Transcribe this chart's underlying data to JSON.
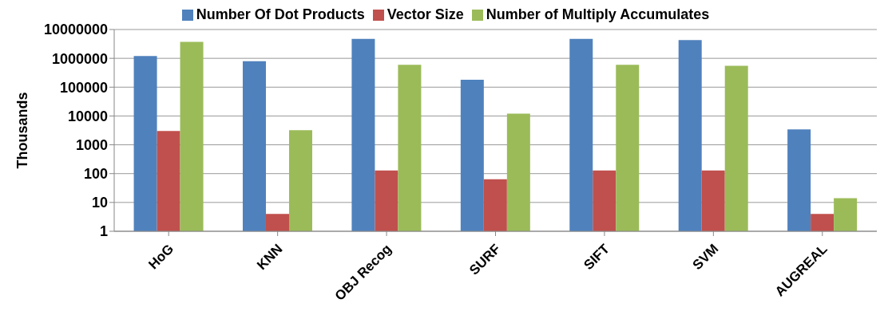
{
  "chart_data": {
    "type": "bar",
    "ylabel": "Thousands",
    "categories": [
      "HoG",
      "KNN",
      "OBJ Recog",
      "SURF",
      "SIFT",
      "SVM",
      "AUGREAL"
    ],
    "series": [
      {
        "name": "Number Of Dot Products",
        "color": "#4f81bd",
        "values": [
          1200000,
          800000,
          4700000,
          180000,
          4700000,
          4300000,
          3400
        ]
      },
      {
        "name": "Vector Size",
        "color": "#c0504d",
        "values": [
          3000,
          4,
          128,
          64,
          128,
          128,
          4
        ]
      },
      {
        "name": "Number of Multiply Accumulates",
        "color": "#9bbb59",
        "values": [
          3700000,
          3200,
          600000,
          12000,
          600000,
          550000,
          14
        ]
      }
    ],
    "log": "y",
    "ylim": [
      1,
      10000000
    ],
    "yticks": [
      1,
      10,
      100,
      1000,
      10000,
      100000,
      1000000,
      10000000
    ],
    "grid": "y",
    "legend": "top"
  }
}
